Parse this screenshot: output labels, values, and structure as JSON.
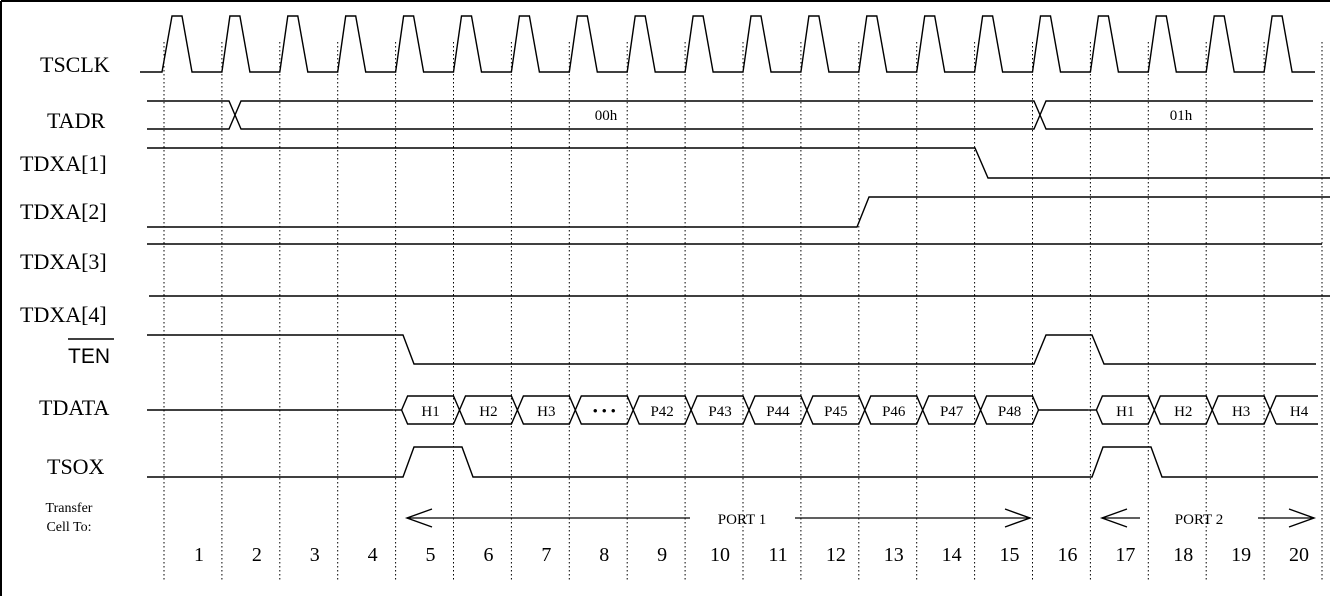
{
  "signals": {
    "tsclk": "TSCLK",
    "tadr": "TADR",
    "tdxa1": "TDXA[1]",
    "tdxa2": "TDXA[2]",
    "tdxa3": "TDXA[3]",
    "tdxa4": "TDXA[4]",
    "ten": "TEN",
    "tdata": "TDATA",
    "tsox": "TSOX",
    "transfer_line1": "Transfer",
    "transfer_line2": "Cell To:"
  },
  "tadr_values": [
    "00h",
    "01h"
  ],
  "tdata_values": [
    "H1",
    "H2",
    "H3",
    "• • •",
    "P42",
    "P43",
    "P44",
    "P45",
    "P46",
    "P47",
    "P48",
    "H1",
    "H2",
    "H3",
    "H4"
  ],
  "ports": [
    "PORT 1",
    "PORT 2"
  ],
  "cycles": [
    "1",
    "2",
    "3",
    "4",
    "5",
    "6",
    "7",
    "8",
    "9",
    "10",
    "11",
    "12",
    "13",
    "14",
    "15",
    "16",
    "17",
    "18",
    "19",
    "20"
  ],
  "colors": {
    "line": "#000000",
    "background": "#ffffff"
  }
}
